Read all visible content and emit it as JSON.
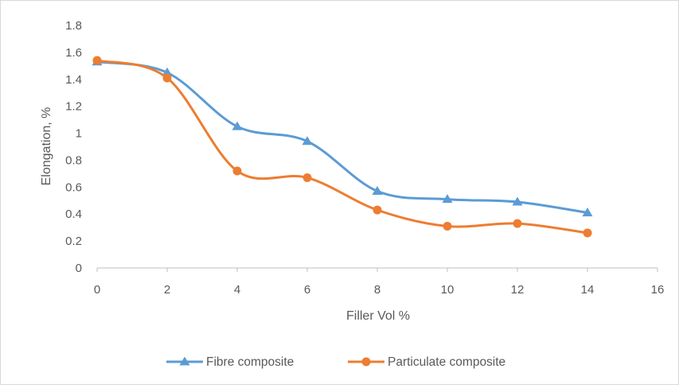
{
  "chart_data": {
    "type": "line",
    "title": "",
    "xlabel": "Filler Vol %",
    "ylabel": "Elongation, %",
    "xlim": [
      0,
      16
    ],
    "ylim": [
      0,
      1.8
    ],
    "x_ticks": [
      "0",
      "2",
      "4",
      "6",
      "8",
      "10",
      "12",
      "14",
      "16"
    ],
    "y_ticks": [
      "0",
      "0.2",
      "0.4",
      "0.6",
      "0.8",
      "1",
      "1.2",
      "1.4",
      "1.6",
      "1.8"
    ],
    "grid": false,
    "smoothed": true,
    "legend_position": "bottom",
    "series": [
      {
        "name": "Fibre composite",
        "color": "#5b9bd5",
        "marker": "triangle",
        "x": [
          0,
          2,
          4,
          6,
          8,
          10,
          12,
          14
        ],
        "values": [
          1.53,
          1.45,
          1.05,
          0.94,
          0.57,
          0.51,
          0.49,
          0.41
        ]
      },
      {
        "name": "Particulate composite",
        "color": "#ed7d31",
        "marker": "circle",
        "x": [
          0,
          2,
          4,
          6,
          8,
          10,
          12,
          14
        ],
        "values": [
          1.54,
          1.41,
          0.72,
          0.67,
          0.43,
          0.31,
          0.33,
          0.26
        ]
      }
    ]
  }
}
